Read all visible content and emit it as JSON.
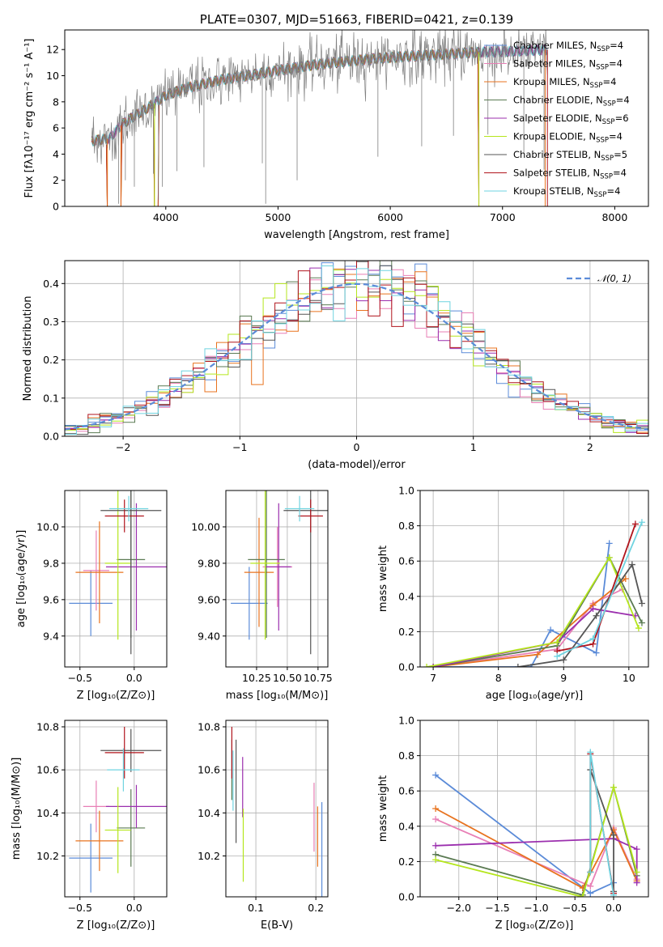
{
  "colors": {
    "Chabrier MILES": "#5b8bd8",
    "Salpeter MILES": "#e87fb5",
    "Kroupa MILES": "#e8731f",
    "Chabrier ELODIE": "#5a7a52",
    "Salpeter ELODIE": "#9b2fae",
    "Kroupa ELODIE": "#b5e61d",
    "Chabrier STELIB": "#555555",
    "Salpeter STELIB": "#b0141c",
    "Kroupa STELIB": "#6fd3e0",
    "normal": "#5b8bd8",
    "data": "#808080"
  },
  "chart_data": [
    {
      "id": "spectrum",
      "type": "line",
      "title": "PLATE=0307, MJD=51663, FIBERID=0421, z=0.139",
      "xlabel": "wavelength [Angstrom, rest frame]",
      "ylabel": "Flux [fλ10⁻¹⁷ erg cm⁻² s⁻¹ A⁻¹]",
      "xlim": [
        3100,
        8300
      ],
      "ylim": [
        0,
        13.5
      ],
      "xticks": [
        "4000",
        "5000",
        "6000",
        "7000",
        "8000"
      ],
      "yticks": [
        "0",
        "2",
        "4",
        "6",
        "8",
        "10",
        "12"
      ],
      "legend_position": "upper-right",
      "legend": [
        {
          "label": "Chabrier MILES, N",
          "sub": "SSP",
          "tail": "=4"
        },
        {
          "label": "Salpeter MILES, N",
          "sub": "SSP",
          "tail": "=4"
        },
        {
          "label": "Kroupa MILES, N",
          "sub": "SSP",
          "tail": "=4"
        },
        {
          "label": "Chabrier ELODIE, N",
          "sub": "SSP",
          "tail": "=4"
        },
        {
          "label": "Salpeter ELODIE, N",
          "sub": "SSP",
          "tail": "=6"
        },
        {
          "label": "Kroupa ELODIE, N",
          "sub": "SSP",
          "tail": "=4"
        },
        {
          "label": "Chabrier STELIB, N",
          "sub": "SSP",
          "tail": "=5"
        },
        {
          "label": "Salpeter STELIB, N",
          "sub": "SSP",
          "tail": "=4"
        },
        {
          "label": "Kroupa STELIB, N",
          "sub": "SSP",
          "tail": "=4"
        }
      ],
      "continuum": [
        [
          3340,
          5.0
        ],
        [
          3500,
          5.2
        ],
        [
          3600,
          6.2
        ],
        [
          3700,
          6.8
        ],
        [
          3850,
          7.6
        ],
        [
          4000,
          8.5
        ],
        [
          4200,
          9.1
        ],
        [
          4500,
          9.7
        ],
        [
          4800,
          10.1
        ],
        [
          5000,
          10.4
        ],
        [
          5300,
          10.8
        ],
        [
          5600,
          11.1
        ],
        [
          6000,
          11.4
        ],
        [
          6400,
          11.6
        ],
        [
          6800,
          11.8
        ],
        [
          7200,
          11.9
        ],
        [
          7400,
          12.0
        ]
      ],
      "model_cutoffs": [
        [
          3480,
          3600
        ],
        [
          3900,
          3930
        ],
        [
          6790,
          7400
        ]
      ],
      "absorption_lines": [
        [
          3580,
          0.2
        ],
        [
          3640,
          2.0
        ],
        [
          3720,
          1.5
        ],
        [
          3890,
          2.5
        ],
        [
          3935,
          0.5
        ],
        [
          3970,
          1.5
        ],
        [
          4100,
          2.7
        ],
        [
          4340,
          3.0
        ],
        [
          4860,
          3.3
        ],
        [
          4890,
          0.2
        ],
        [
          5170,
          2.0
        ],
        [
          5890,
          3.8
        ],
        [
          6280,
          4.6
        ],
        [
          6563,
          5.4
        ],
        [
          6870,
          5.5
        ],
        [
          7190,
          4.1
        ],
        [
          7370,
          2.8
        ]
      ]
    },
    {
      "id": "residuals",
      "type": "histogram",
      "xlabel": "(data-model)/error",
      "ylabel": "Normed distribution",
      "xlim": [
        -2.5,
        2.5
      ],
      "ylim": [
        0,
        0.46
      ],
      "xticks": [
        "−2",
        "−1",
        "0",
        "1",
        "2"
      ],
      "yticks": [
        "0.0",
        "0.1",
        "0.2",
        "0.3",
        "0.4"
      ],
      "bin_width": 0.1,
      "curve_label": "𝒩(0, 1)",
      "legend_position": "upper-right"
    },
    {
      "id": "age_vs_Z",
      "type": "errorbar",
      "xlabel": "Z [log₁₀(Z/Z⊙)]",
      "ylabel": "age  [log₁₀(age/yr)]",
      "xlim": [
        -0.64,
        0.3
      ],
      "ylim": [
        9.23,
        10.2
      ],
      "xticks": [
        -0.5,
        0.0
      ],
      "yticks": [
        9.4,
        9.6,
        9.8,
        10.0
      ],
      "tick_decimals": 1,
      "points": [
        {
          "model": "Chabrier MILES",
          "x": -0.4,
          "xerr": 0.2,
          "y": 9.58,
          "yerr": 0.18
        },
        {
          "model": "Salpeter MILES",
          "x": -0.35,
          "xerr": 0.12,
          "y": 9.76,
          "yerr": 0.22
        },
        {
          "model": "Kroupa MILES",
          "x": -0.32,
          "xerr": 0.22,
          "y": 9.75,
          "yerr": 0.28
        },
        {
          "model": "Chabrier ELODIE",
          "x": -0.03,
          "xerr": 0.13,
          "y": 9.82,
          "yerr": 0.43
        },
        {
          "model": "Salpeter ELODIE",
          "x": 0.02,
          "xerr": 0.28,
          "y": 9.78,
          "yerr": 0.35
        },
        {
          "model": "Kroupa ELODIE",
          "x": -0.15,
          "xerr": 0.12,
          "y": 9.8,
          "yerr": 0.42
        },
        {
          "model": "Chabrier STELIB",
          "x": -0.03,
          "xerr": 0.28,
          "y": 10.09,
          "yerr": 0.79
        },
        {
          "model": "Salpeter STELIB",
          "x": -0.09,
          "xerr": 0.18,
          "y": 10.06,
          "yerr": 0.09
        },
        {
          "model": "Kroupa STELIB",
          "x": -0.05,
          "xerr": 0.18,
          "y": 10.1,
          "yerr": 0.07
        }
      ]
    },
    {
      "id": "age_vs_mass",
      "type": "errorbar",
      "xlabel": "mass [log₁₀(M/M⊙)]",
      "ylabel": "",
      "xlim": [
        10.0,
        10.83
      ],
      "ylim": [
        9.23,
        10.2
      ],
      "xticks": [
        10.25,
        10.5,
        10.75
      ],
      "yticks": [
        9.4,
        9.6,
        9.8,
        10.0
      ],
      "tick_decimals": 2,
      "points": [
        {
          "model": "Chabrier MILES",
          "x": 10.19,
          "xerr": 0.15,
          "y": 9.58,
          "yerr": 0.2
        },
        {
          "model": "Salpeter MILES",
          "x": 10.42,
          "xerr": 0.12,
          "y": 9.78,
          "yerr": 0.22
        },
        {
          "model": "Kroupa MILES",
          "x": 10.27,
          "xerr": 0.12,
          "y": 9.75,
          "yerr": 0.3
        },
        {
          "model": "Chabrier ELODIE",
          "x": 10.33,
          "xerr": 0.15,
          "y": 9.82,
          "yerr": 0.43
        },
        {
          "model": "Salpeter ELODIE",
          "x": 10.43,
          "xerr": 0.1,
          "y": 9.78,
          "yerr": 0.35
        },
        {
          "model": "Kroupa ELODIE",
          "x": 10.32,
          "xerr": 0.12,
          "y": 9.8,
          "yerr": 0.42
        },
        {
          "model": "Chabrier STELIB",
          "x": 10.69,
          "xerr": 0.22,
          "y": 10.09,
          "yerr": 0.79
        },
        {
          "model": "Salpeter STELIB",
          "x": 10.69,
          "xerr": 0.1,
          "y": 10.06,
          "yerr": 0.09
        },
        {
          "model": "Kroupa STELIB",
          "x": 10.6,
          "xerr": 0.12,
          "y": 10.1,
          "yerr": 0.07
        }
      ]
    },
    {
      "id": "massweight_vs_age",
      "type": "line",
      "xlabel": "age  [log₁₀(age/yr)]",
      "ylabel": "mass weight",
      "xlim": [
        6.8,
        10.3
      ],
      "ylim": [
        0,
        1.0
      ],
      "xticks": [
        7,
        8,
        9,
        10
      ],
      "yticks": [
        0.0,
        0.2,
        0.4,
        0.6,
        0.8,
        1.0
      ],
      "tick_decimals": 1,
      "series": [
        {
          "model": "Chabrier MILES",
          "x": [
            7.0,
            8.5,
            8.8,
            9.5,
            9.7
          ],
          "y": [
            0.0,
            0.0,
            0.21,
            0.08,
            0.7
          ]
        },
        {
          "model": "Salpeter MILES",
          "x": [
            7.0,
            8.9,
            9.45,
            9.9
          ],
          "y": [
            0.0,
            0.1,
            0.36,
            0.44
          ]
        },
        {
          "model": "Kroupa MILES",
          "x": [
            7.0,
            8.6,
            9.45,
            9.95
          ],
          "y": [
            0.0,
            0.07,
            0.35,
            0.5
          ]
        },
        {
          "model": "Chabrier ELODIE",
          "x": [
            7.0,
            8.9,
            9.7,
            10.2
          ],
          "y": [
            0.0,
            0.12,
            0.62,
            0.25
          ]
        },
        {
          "model": "Salpeter ELODIE",
          "x": [
            7.0,
            8.9,
            9.45,
            10.1
          ],
          "y": [
            0.0,
            0.14,
            0.33,
            0.29
          ]
        },
        {
          "model": "Kroupa ELODIE",
          "x": [
            6.9,
            8.9,
            9.7,
            10.15
          ],
          "y": [
            0.0,
            0.14,
            0.62,
            0.22
          ]
        },
        {
          "model": "Chabrier STELIB",
          "x": [
            8.3,
            9.0,
            9.5,
            10.05,
            10.2
          ],
          "y": [
            0.0,
            0.04,
            0.29,
            0.58,
            0.36
          ]
        },
        {
          "model": "Salpeter STELIB",
          "x": [
            8.9,
            9.45,
            10.1
          ],
          "y": [
            0.09,
            0.13,
            0.81
          ]
        },
        {
          "model": "Kroupa STELIB",
          "x": [
            8.9,
            9.45,
            10.2
          ],
          "y": [
            0.06,
            0.16,
            0.82
          ]
        }
      ]
    },
    {
      "id": "mass_vs_Z",
      "type": "errorbar",
      "xlabel": "Z [log₁₀(Z/Z⊙)]",
      "ylabel": "mass [log₁₀(M/M⊙)]",
      "xlim": [
        -0.64,
        0.3
      ],
      "ylim": [
        10.01,
        10.83
      ],
      "xticks": [
        -0.5,
        0.0
      ],
      "yticks": [
        10.2,
        10.4,
        10.6,
        10.8
      ],
      "tick_decimals": 1,
      "points": [
        {
          "model": "Chabrier MILES",
          "x": -0.4,
          "xerr": 0.2,
          "y": 10.19,
          "yerr": 0.16
        },
        {
          "model": "Salpeter MILES",
          "x": -0.35,
          "xerr": 0.12,
          "y": 10.43,
          "yerr": 0.12
        },
        {
          "model": "Kroupa MILES",
          "x": -0.32,
          "xerr": 0.22,
          "y": 10.27,
          "yerr": 0.14
        },
        {
          "model": "Chabrier ELODIE",
          "x": -0.03,
          "xerr": 0.13,
          "y": 10.33,
          "yerr": 0.18
        },
        {
          "model": "Salpeter ELODIE",
          "x": 0.02,
          "xerr": 0.28,
          "y": 10.43,
          "yerr": 0.1
        },
        {
          "model": "Kroupa ELODIE",
          "x": -0.15,
          "xerr": 0.12,
          "y": 10.32,
          "yerr": 0.2
        },
        {
          "model": "Chabrier STELIB",
          "x": -0.03,
          "xerr": 0.28,
          "y": 10.69,
          "yerr": 0.1
        },
        {
          "model": "Salpeter STELIB",
          "x": -0.09,
          "xerr": 0.18,
          "y": 10.68,
          "yerr": 0.12
        },
        {
          "model": "Kroupa STELIB",
          "x": -0.1,
          "xerr": 0.15,
          "y": 10.6,
          "yerr": 0.1
        }
      ]
    },
    {
      "id": "mass_vs_EBV",
      "type": "errorbar",
      "xlabel": "E(B-V)",
      "ylabel": "",
      "xlim": [
        0.05,
        0.22
      ],
      "ylim": [
        10.01,
        10.83
      ],
      "xticks": [
        0.1,
        0.2
      ],
      "yticks": [
        10.2,
        10.4,
        10.6,
        10.8
      ],
      "tick_decimals": 1,
      "points": [
        {
          "model": "Chabrier MILES",
          "x": 0.21,
          "xerr": 0,
          "y": 10.23,
          "yerr": 0.22
        },
        {
          "model": "Salpeter MILES",
          "x": 0.197,
          "xerr": 0,
          "y": 10.38,
          "yerr": 0.16
        },
        {
          "model": "Kroupa MILES",
          "x": 0.203,
          "xerr": 0,
          "y": 10.29,
          "yerr": 0.14
        },
        {
          "model": "Chabrier ELODIE",
          "x": 0.06,
          "xerr": 0,
          "y": 10.6,
          "yerr": 0.14
        },
        {
          "model": "Salpeter ELODIE",
          "x": 0.078,
          "xerr": 0,
          "y": 10.52,
          "yerr": 0.14
        },
        {
          "model": "Kroupa ELODIE",
          "x": 0.079,
          "xerr": 0,
          "y": 10.25,
          "yerr": 0.17
        },
        {
          "model": "Chabrier STELIB",
          "x": 0.067,
          "xerr": 0,
          "y": 10.5,
          "yerr": 0.24
        },
        {
          "model": "Salpeter STELIB",
          "x": 0.06,
          "xerr": 0,
          "y": 10.68,
          "yerr": 0.12
        },
        {
          "model": "Kroupa STELIB",
          "x": 0.062,
          "xerr": 0,
          "y": 10.55,
          "yerr": 0.14
        }
      ]
    },
    {
      "id": "massweight_vs_Z",
      "type": "line",
      "xlabel": "Z [log₁₀(Z/Z⊙)]",
      "ylabel": "mass weight",
      "xlim": [
        -2.5,
        0.45
      ],
      "ylim": [
        0,
        1.0
      ],
      "xticks": [
        -2.0,
        -1.5,
        -1.0,
        -0.5,
        0.0
      ],
      "yticks": [
        0.0,
        0.2,
        0.4,
        0.6,
        0.8,
        1.0
      ],
      "tick_decimals": 1,
      "series": [
        {
          "model": "Chabrier MILES",
          "x": [
            -2.3,
            -0.3,
            0.0
          ],
          "y": [
            0.69,
            0.02,
            0.08
          ]
        },
        {
          "model": "Salpeter MILES",
          "x": [
            -2.3,
            -0.3,
            0.0,
            0.3
          ],
          "y": [
            0.44,
            0.06,
            0.39,
            0.1
          ]
        },
        {
          "model": "Kroupa MILES",
          "x": [
            -2.3,
            -0.4,
            0.0,
            0.3
          ],
          "y": [
            0.5,
            0.05,
            0.38,
            0.09
          ]
        },
        {
          "model": "Chabrier ELODIE",
          "x": [
            -2.3,
            -0.4,
            0.0,
            0.3
          ],
          "y": [
            0.24,
            0.01,
            0.62,
            0.12
          ]
        },
        {
          "model": "Salpeter ELODIE",
          "x": [
            -2.3,
            0.0,
            0.3,
            0.3
          ],
          "y": [
            0.29,
            0.33,
            0.27,
            0.08
          ]
        },
        {
          "model": "Kroupa ELODIE",
          "x": [
            -2.3,
            -0.4,
            0.0,
            0.3
          ],
          "y": [
            0.21,
            0.0,
            0.62,
            0.14
          ]
        },
        {
          "model": "Chabrier STELIB",
          "x": [
            -0.3,
            -0.3,
            0.0,
            0.0
          ],
          "y": [
            0.14,
            0.72,
            0.35,
            0.03
          ]
        },
        {
          "model": "Salpeter STELIB",
          "x": [
            -0.3,
            -0.3,
            0.0
          ],
          "y": [
            0.14,
            0.81,
            0.02
          ]
        },
        {
          "model": "Kroupa STELIB",
          "x": [
            -0.3,
            -0.3,
            0.0
          ],
          "y": [
            0.14,
            0.82,
            0.01
          ]
        }
      ]
    }
  ]
}
